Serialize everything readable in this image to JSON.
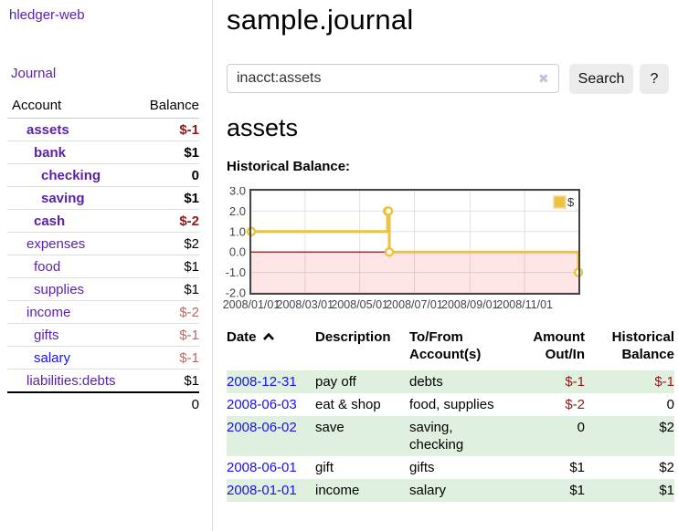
{
  "app": {
    "brand": "hledger-web"
  },
  "sidebar": {
    "nav_journal": "Journal",
    "accounts": {
      "headers": {
        "account": "Account",
        "balance": "Balance"
      },
      "rows": [
        {
          "name": "assets",
          "indent": 0,
          "bold": true,
          "balance": "$-1",
          "neg": "strong"
        },
        {
          "name": "bank",
          "indent": 1,
          "bold": true,
          "balance": "$1"
        },
        {
          "name": "checking",
          "indent": 2,
          "bold": true,
          "balance": "0"
        },
        {
          "name": "saving",
          "indent": 2,
          "bold": true,
          "balance": "$1"
        },
        {
          "name": "cash",
          "indent": 1,
          "bold": true,
          "balance": "$-2",
          "neg": "strong"
        },
        {
          "name": "expenses",
          "indent": 0,
          "bold": false,
          "balance": "$2"
        },
        {
          "name": "food",
          "indent": 1,
          "bold": false,
          "balance": "$1"
        },
        {
          "name": "supplies",
          "indent": 1,
          "bold": false,
          "balance": "$1"
        },
        {
          "name": "income",
          "indent": 0,
          "bold": false,
          "balance": "$-2",
          "neg": "soft"
        },
        {
          "name": "gifts",
          "indent": 1,
          "bold": false,
          "balance": "$-1",
          "neg": "soft"
        },
        {
          "name": "salary",
          "indent": 1,
          "bold": false,
          "balance": "$-1",
          "neg": "soft",
          "link_color": "blue"
        },
        {
          "name": "liabilities:debts",
          "indent": 0,
          "bold": false,
          "balance": "$1"
        }
      ],
      "total": "0"
    }
  },
  "main": {
    "title": "sample.journal",
    "search": {
      "value": "inacct:assets",
      "clear_icon": "✖",
      "search_button": "Search",
      "help_button": "?"
    },
    "account_heading": "assets",
    "chart_title": "Historical Balance:"
  },
  "chart_data": {
    "type": "line",
    "step": true,
    "title": "Historical Balance",
    "legend": [
      {
        "label": "$",
        "color": "#edc240"
      }
    ],
    "legend_position": "top-right",
    "series": [
      {
        "name": "$",
        "color": "#edc240",
        "points": [
          [
            "2008-01-01",
            1
          ],
          [
            "2008-06-01",
            2
          ],
          [
            "2008-06-02",
            2
          ],
          [
            "2008-06-03",
            0
          ],
          [
            "2008-12-31",
            -1
          ]
        ]
      }
    ],
    "xrange": [
      "2008-01-01",
      "2008-12-31"
    ],
    "ylim": [
      -2,
      3
    ],
    "yticks": [
      3.0,
      2.0,
      1.0,
      0.0,
      -1.0,
      -2.0
    ],
    "xticks": [
      "2008/01/01",
      "2008/03/01",
      "2008/05/01",
      "2008/07/01",
      "2008/09/01",
      "2008/11/01"
    ],
    "grid": true,
    "negative_fill": "rgba(255,0,0,0.10)",
    "zero_line_color": "#800000",
    "border_color": "#444"
  },
  "register": {
    "headers": {
      "date": "Date",
      "description": "Description",
      "accounts": "To/From Account(s)",
      "amount": "Amount Out/In",
      "balance": "Historical Balance"
    },
    "rows": [
      {
        "date": "2008-12-31",
        "description": "pay off",
        "accounts": "debts",
        "amount": "$-1",
        "amount_neg": true,
        "balance": "$-1",
        "balance_neg": true
      },
      {
        "date": "2008-06-03",
        "description": "eat & shop",
        "accounts": "food, supplies",
        "amount": "$-2",
        "amount_neg": true,
        "balance": "0",
        "balance_neg": false
      },
      {
        "date": "2008-06-02",
        "description": "save",
        "accounts": "saving, checking",
        "amount": "0",
        "amount_neg": false,
        "balance": "$2",
        "balance_neg": false
      },
      {
        "date": "2008-06-01",
        "description": "gift",
        "accounts": "gifts",
        "amount": "$1",
        "amount_neg": false,
        "balance": "$2",
        "balance_neg": false
      },
      {
        "date": "2008-01-01",
        "description": "income",
        "accounts": "salary",
        "amount": "$1",
        "amount_neg": false,
        "balance": "$1",
        "balance_neg": false
      }
    ]
  },
  "colors": {
    "link_purple": "#5b1fa8",
    "link_blue": "#1a12ee",
    "negative_strong": "#8c1a1a",
    "negative_soft": "#b46a6a",
    "row_green": "#dff0df",
    "chart_gold": "#edc240"
  }
}
